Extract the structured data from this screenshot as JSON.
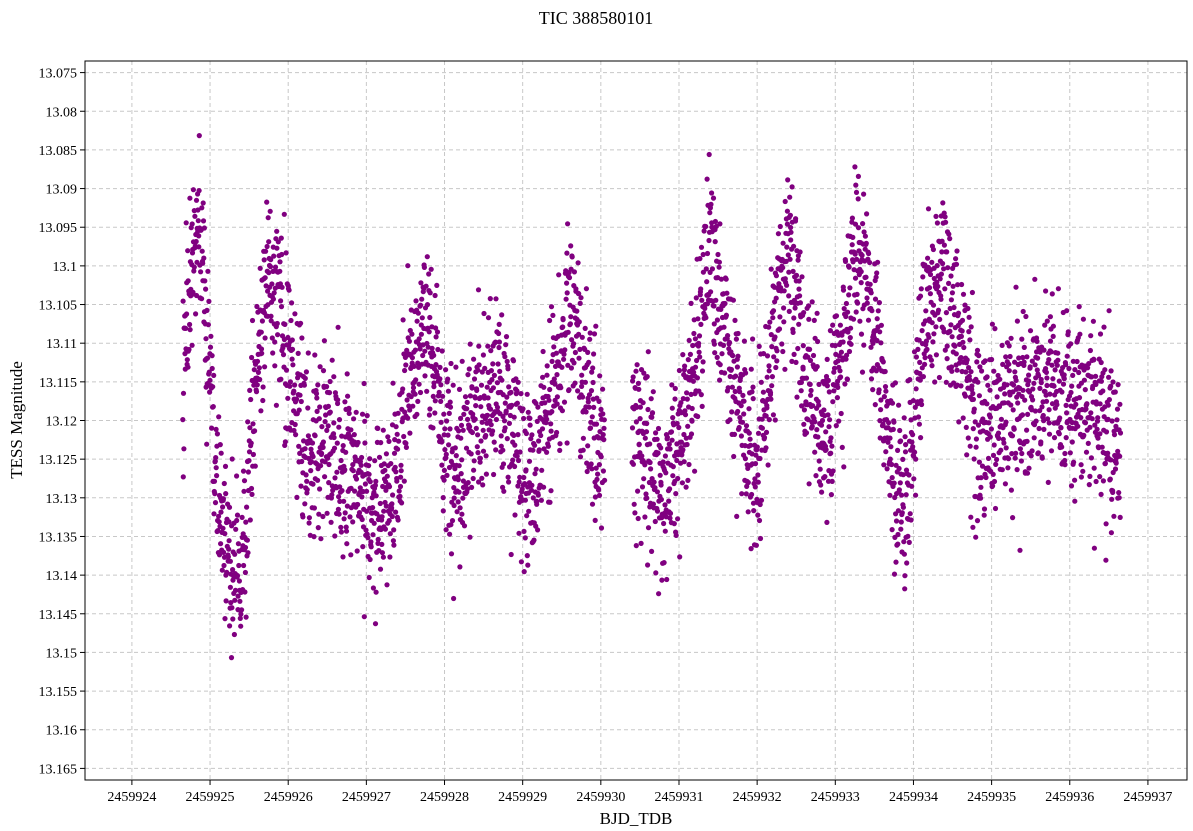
{
  "chart_data": {
    "type": "scatter",
    "title": "TIC 388580101",
    "xlabel": "BJD_TDB",
    "ylabel": "TESS Magnitude",
    "xlim": [
      2459923.4,
      2459937.5
    ],
    "ylim": [
      13.1665,
      13.0735
    ],
    "y_inverted": true,
    "grid": true,
    "x_ticks": [
      2459924,
      2459925,
      2459926,
      2459927,
      2459928,
      2459929,
      2459930,
      2459931,
      2459932,
      2459933,
      2459934,
      2459935,
      2459936,
      2459937
    ],
    "x_tick_labels": [
      "2459924",
      "2459925",
      "2459926",
      "2459927",
      "2459928",
      "2459929",
      "2459930",
      "2459931",
      "2459932",
      "2459933",
      "2459934",
      "2459935",
      "2459936",
      "2459937"
    ],
    "y_ticks": [
      13.075,
      13.08,
      13.085,
      13.09,
      13.095,
      13.1,
      13.105,
      13.11,
      13.115,
      13.12,
      13.125,
      13.13,
      13.135,
      13.14,
      13.145,
      13.15,
      13.155,
      13.16,
      13.165
    ],
    "y_tick_labels": [
      "13.075",
      "13.08",
      "13.085",
      "13.09",
      "13.095",
      "13.1",
      "13.105",
      "13.11",
      "13.115",
      "13.12",
      "13.125",
      "13.13",
      "13.135",
      "13.14",
      "13.145",
      "13.15",
      "13.155",
      "13.16",
      "13.165"
    ],
    "series": [
      {
        "color": "#800080",
        "marker": "circle",
        "x_start": 2459924.65,
        "x_end": 2459936.65,
        "gap": [
          2459930.05,
          2459930.4
        ],
        "mean_magnitude": 13.12,
        "profile": [
          [
            2459924.65,
            13.118
          ],
          [
            2459924.75,
            13.1
          ],
          [
            2459924.85,
            13.095
          ],
          [
            2459925.0,
            13.112
          ],
          [
            2459925.1,
            13.13
          ],
          [
            2459925.25,
            13.14
          ],
          [
            2459925.4,
            13.14
          ],
          [
            2459925.55,
            13.118
          ],
          [
            2459925.75,
            13.1
          ],
          [
            2459925.95,
            13.108
          ],
          [
            2459926.2,
            13.122
          ],
          [
            2459926.5,
            13.122
          ],
          [
            2459926.8,
            13.126
          ],
          [
            2459927.1,
            13.132
          ],
          [
            2459927.3,
            13.13
          ],
          [
            2459927.55,
            13.115
          ],
          [
            2459927.8,
            13.108
          ],
          [
            2459928.0,
            13.122
          ],
          [
            2459928.15,
            13.128
          ],
          [
            2459928.4,
            13.118
          ],
          [
            2459928.7,
            13.115
          ],
          [
            2459928.95,
            13.125
          ],
          [
            2459929.1,
            13.13
          ],
          [
            2459929.35,
            13.118
          ],
          [
            2459929.6,
            13.106
          ],
          [
            2459929.8,
            13.115
          ],
          [
            2459930.05,
            13.125
          ],
          [
            2459930.4,
            13.123
          ],
          [
            2459930.65,
            13.124
          ],
          [
            2459930.8,
            13.13
          ],
          [
            2459931.05,
            13.122
          ],
          [
            2459931.25,
            13.11
          ],
          [
            2459931.4,
            13.097
          ],
          [
            2459931.6,
            13.11
          ],
          [
            2459931.85,
            13.122
          ],
          [
            2459932.0,
            13.126
          ],
          [
            2459932.2,
            13.11
          ],
          [
            2459932.4,
            13.097
          ],
          [
            2459932.6,
            13.112
          ],
          [
            2459932.85,
            13.122
          ],
          [
            2459933.05,
            13.114
          ],
          [
            2459933.25,
            13.098
          ],
          [
            2459933.45,
            13.105
          ],
          [
            2459933.65,
            13.12
          ],
          [
            2459933.85,
            13.132
          ],
          [
            2459934.05,
            13.118
          ],
          [
            2459934.2,
            13.105
          ],
          [
            2459934.4,
            13.1
          ],
          [
            2459934.55,
            13.108
          ],
          [
            2459934.8,
            13.12
          ],
          [
            2459935.0,
            13.122
          ],
          [
            2459935.3,
            13.118
          ],
          [
            2459935.6,
            13.116
          ],
          [
            2459935.95,
            13.118
          ],
          [
            2459936.3,
            13.118
          ],
          [
            2459936.65,
            13.124
          ]
        ]
      }
    ]
  }
}
